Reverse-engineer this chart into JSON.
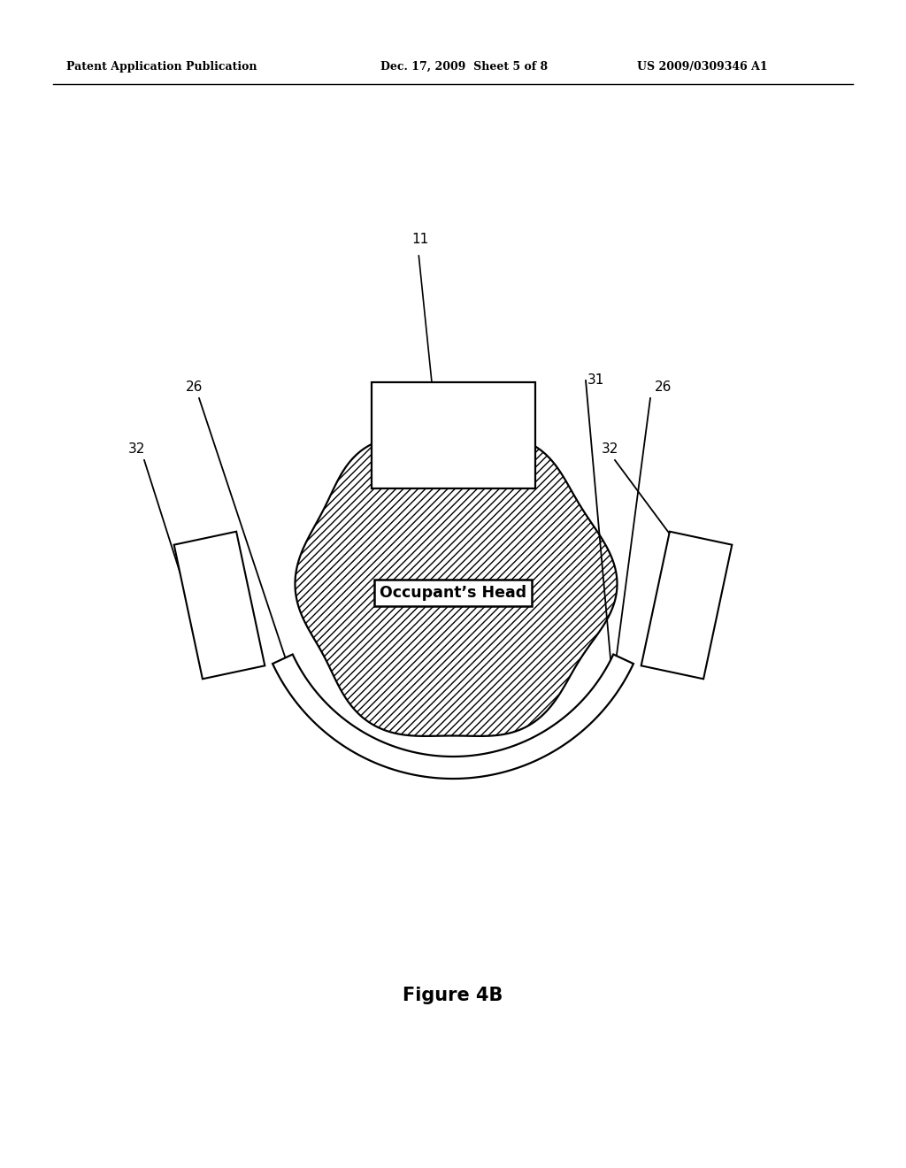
{
  "bg_color": "#ffffff",
  "line_color": "#000000",
  "header_left": "Patent Application Publication",
  "header_mid": "Dec. 17, 2009  Sheet 5 of 8",
  "header_right": "US 2009/0309346 A1",
  "figure_caption": "Figure 4B",
  "label_11": "11",
  "label_26_left": "26",
  "label_26_right": "26",
  "label_31": "31",
  "label_32_left": "32",
  "label_32_right": "32",
  "label_head": "Occupant’s Head"
}
